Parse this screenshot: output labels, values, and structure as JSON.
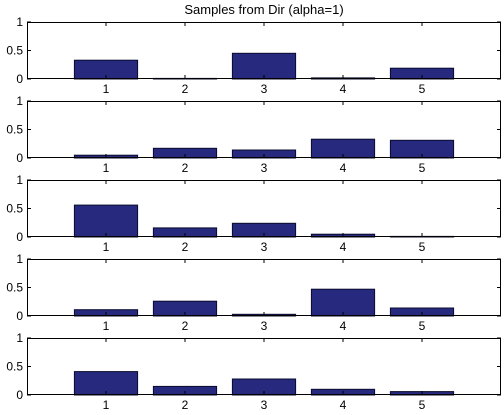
{
  "chart_data": {
    "type": "bar",
    "title": "Samples from Dir (alpha=1)",
    "xlabel": "",
    "ylabel": "",
    "categories": [
      "1",
      "2",
      "3",
      "4",
      "5"
    ],
    "ylim": [
      0,
      1
    ],
    "yticks": [
      "0",
      "0.5",
      "1"
    ],
    "grid": false,
    "bar_color": "#26297d",
    "series": [
      {
        "values": [
          0.33,
          0.01,
          0.45,
          0.02,
          0.19
        ]
      },
      {
        "values": [
          0.05,
          0.17,
          0.14,
          0.33,
          0.31
        ]
      },
      {
        "values": [
          0.56,
          0.16,
          0.24,
          0.05,
          0.0
        ]
      },
      {
        "values": [
          0.11,
          0.26,
          0.03,
          0.47,
          0.14
        ]
      },
      {
        "values": [
          0.41,
          0.15,
          0.28,
          0.1,
          0.06
        ]
      }
    ]
  }
}
